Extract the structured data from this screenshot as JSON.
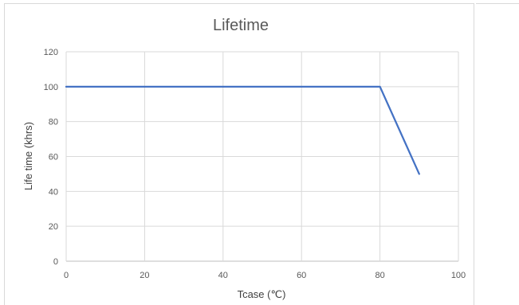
{
  "chart_data": {
    "type": "line",
    "title": "Lifetime",
    "xlabel": "Tcase (℃)",
    "ylabel": "Life time (khrs)",
    "xlim": [
      0,
      100
    ],
    "ylim": [
      0,
      120
    ],
    "x_ticks": [
      0,
      20,
      40,
      60,
      80,
      100
    ],
    "y_ticks": [
      0,
      20,
      40,
      60,
      80,
      100,
      120
    ],
    "grid": true,
    "legend": "none",
    "series": [
      {
        "color": "#4472c4",
        "x": [
          0,
          80,
          90
        ],
        "y": [
          100,
          100,
          50
        ]
      }
    ]
  }
}
